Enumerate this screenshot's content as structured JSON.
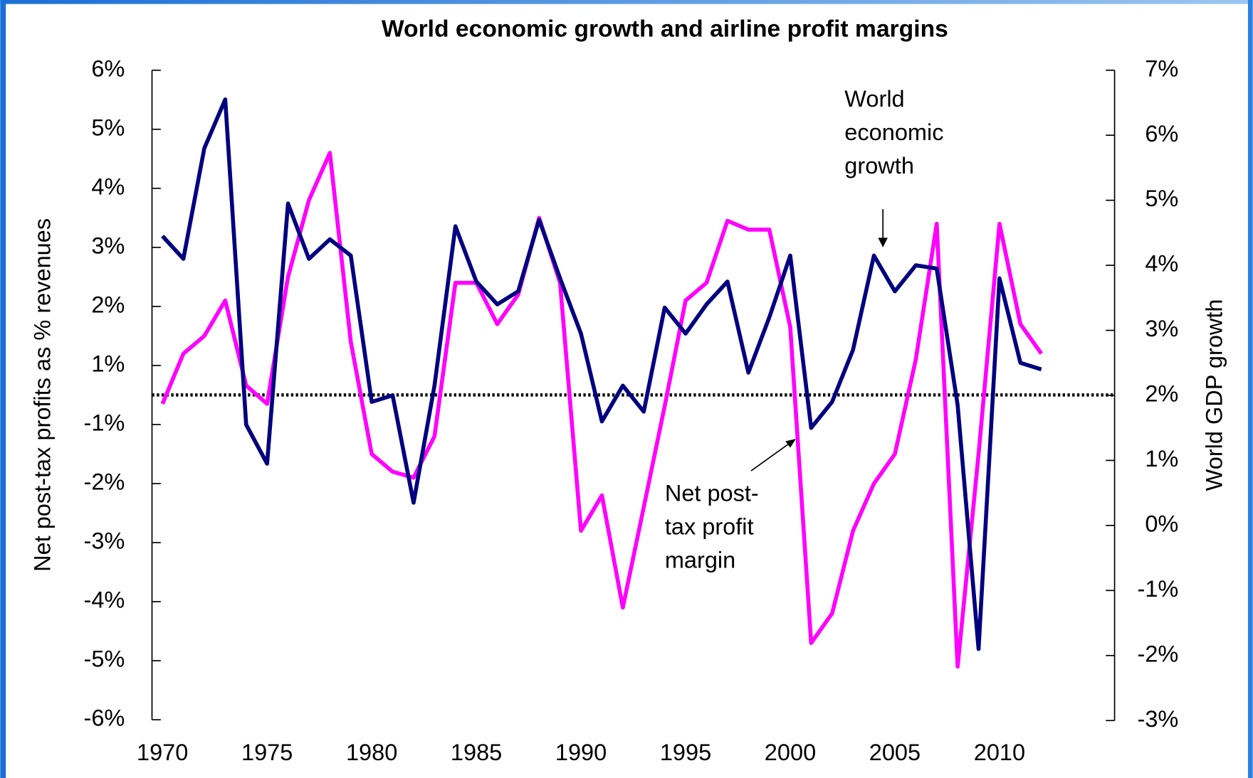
{
  "chart_data": {
    "type": "line",
    "title": "World economic growth and airline profit margins",
    "y_label": "Net post-tax profits as % revenues",
    "y2_label": "World GDP growth",
    "x": [
      1970,
      1971,
      1972,
      1973,
      1974,
      1975,
      1976,
      1977,
      1978,
      1979,
      1980,
      1981,
      1982,
      1983,
      1984,
      1985,
      1986,
      1987,
      1988,
      1989,
      1990,
      1991,
      1992,
      1993,
      1994,
      1995,
      1996,
      1997,
      1998,
      1999,
      2000,
      2001,
      2002,
      2003,
      2004,
      2005,
      2006,
      2007,
      2008,
      2009,
      2010,
      2011,
      2012
    ],
    "series": [
      {
        "name": "Net post-tax profit margin",
        "color": "#ff00ff",
        "axis": "y",
        "values": [
          -0.3,
          1.2,
          1.5,
          2.1,
          0.32,
          -0.3,
          2.5,
          3.8,
          4.6,
          1.4,
          -1.5,
          -1.8,
          -1.9,
          -1.2,
          2.4,
          2.4,
          1.7,
          2.2,
          3.5,
          2.4,
          -2.8,
          -2.2,
          -4.1,
          -2.4,
          -0.38,
          2.1,
          2.4,
          3.45,
          3.3,
          3.3,
          1.65,
          -4.7,
          -4.2,
          -2.8,
          -2.0,
          -1.5,
          1.1,
          3.4,
          -5.1,
          -1.5,
          3.4,
          1.7,
          1.2
        ]
      },
      {
        "name": "World economic growth",
        "color": "#000080",
        "axis": "y2",
        "values": [
          4.45,
          4.1,
          5.8,
          6.55,
          1.55,
          0.95,
          4.95,
          4.1,
          4.4,
          4.15,
          1.9,
          2.0,
          0.35,
          2.15,
          4.6,
          3.75,
          3.4,
          3.6,
          4.7,
          3.8,
          2.95,
          1.6,
          2.15,
          1.75,
          3.35,
          2.95,
          3.4,
          3.75,
          2.35,
          3.2,
          4.15,
          1.5,
          1.9,
          2.7,
          4.15,
          3.6,
          4.0,
          3.95,
          1.85,
          -1.9,
          3.8,
          2.5,
          2.4
        ]
      }
    ],
    "annotations": [
      {
        "lines": [
          "World",
          "economic",
          "growth"
        ]
      },
      {
        "lines": [
          "Net post-",
          "tax profit",
          "margin"
        ]
      }
    ],
    "reference_line": {
      "axis": "y",
      "value": 0
    },
    "xlim": [
      1969.5,
      2015.5
    ],
    "xticks": [
      1970,
      1975,
      1980,
      1985,
      1990,
      1995,
      2000,
      2005,
      2010
    ],
    "ylim": [
      -6,
      6
    ],
    "yticks": [
      {
        "value": 6,
        "label": "6%"
      },
      {
        "value": 5,
        "label": "5%"
      },
      {
        "value": 4,
        "label": "4%"
      },
      {
        "value": 3,
        "label": "3%"
      },
      {
        "value": 2,
        "label": "2%"
      },
      {
        "value": 1,
        "label": "1%"
      },
      {
        "value": -1,
        "label": "-1%"
      },
      {
        "value": -2,
        "label": "-2%"
      },
      {
        "value": -3,
        "label": "-3%"
      },
      {
        "value": -4,
        "label": "-4%"
      },
      {
        "value": -5,
        "label": "-5%"
      },
      {
        "value": -6,
        "label": "-6%"
      }
    ],
    "y2lim": [
      -3,
      7
    ],
    "y2ticks": [
      {
        "value": 7,
        "label": "7%"
      },
      {
        "value": 6,
        "label": "6%"
      },
      {
        "value": 5,
        "label": "5%"
      },
      {
        "value": 4,
        "label": "4%"
      },
      {
        "value": 3,
        "label": "3%"
      },
      {
        "value": 2,
        "label": "2%"
      },
      {
        "value": 1,
        "label": "1%"
      },
      {
        "value": 0,
        "label": "0%"
      },
      {
        "value": -1,
        "label": "-1%"
      },
      {
        "value": -2,
        "label": "-2%"
      },
      {
        "value": -3,
        "label": "-3%"
      }
    ],
    "grid": false
  }
}
